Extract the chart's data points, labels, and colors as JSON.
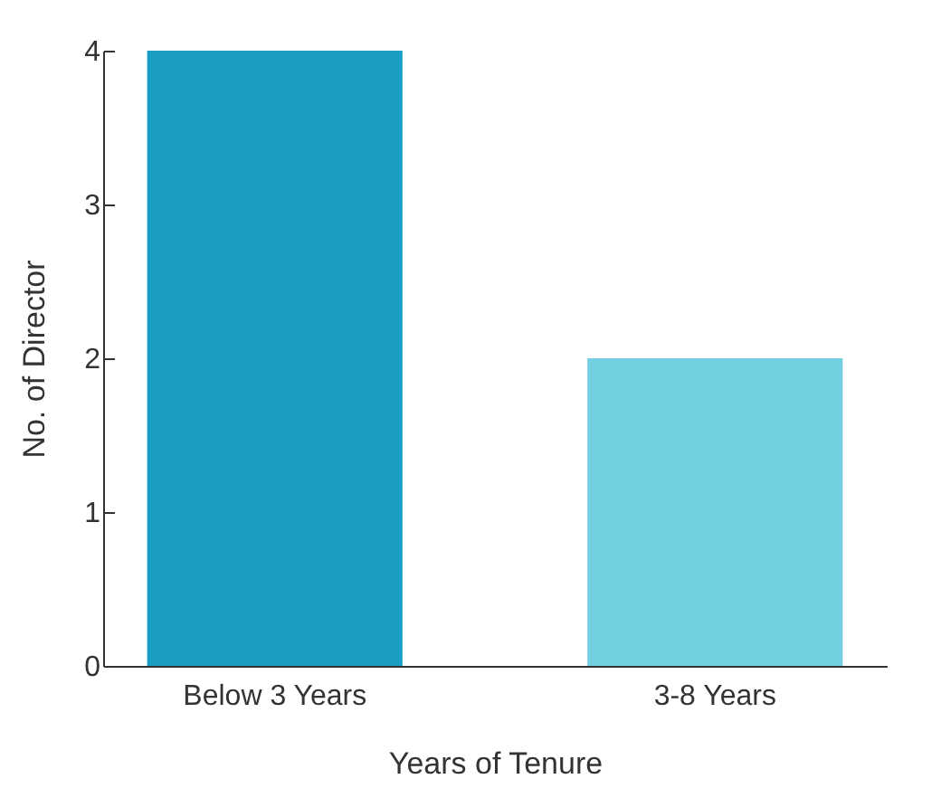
{
  "chart_data": {
    "type": "bar",
    "xlabel": "Years of Tenure",
    "ylabel": "No. of Director",
    "categories": [
      "Below 3 Years",
      "3-8 Years"
    ],
    "values": [
      4,
      2
    ],
    "colors": [
      "#1a9ec3",
      "#72cfe0"
    ],
    "ylim": [
      0,
      4
    ],
    "yticks": [
      0,
      1,
      2,
      3,
      4
    ],
    "grid": false,
    "legend": false
  }
}
